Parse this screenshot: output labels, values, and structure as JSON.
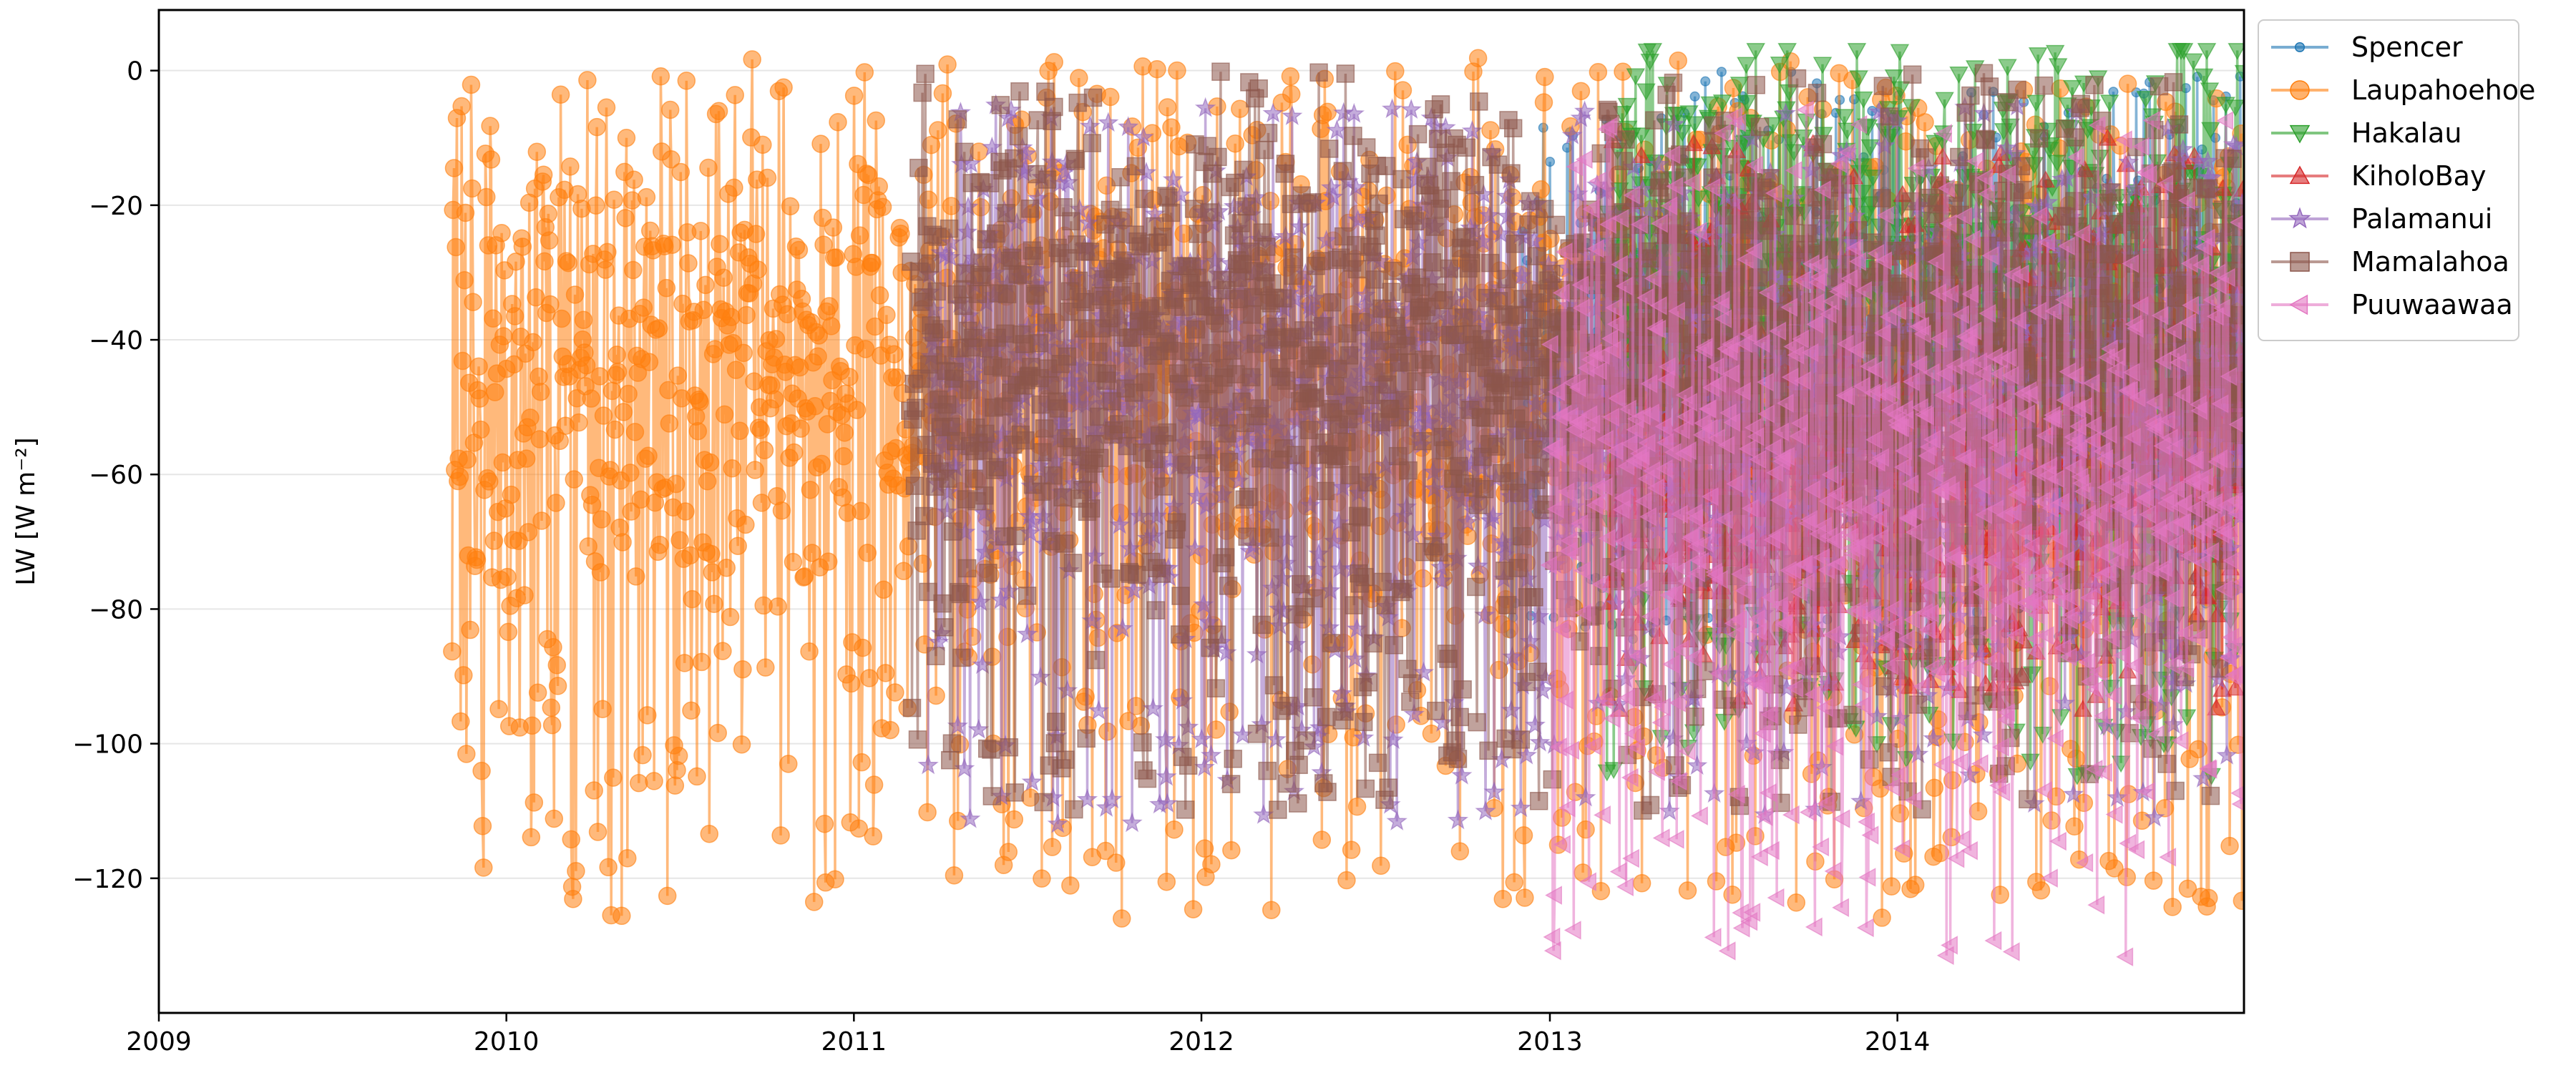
{
  "chart_data": {
    "type": "line",
    "title": "",
    "xlabel": "",
    "ylabel": "LW [W m⁻²]",
    "xlim": [
      "2009-01-01",
      "2014-12-31"
    ],
    "ylim": [
      -140,
      9
    ],
    "x_ticks": [
      "2009",
      "2010",
      "2011",
      "2012",
      "2013",
      "2014"
    ],
    "y_ticks": [
      0,
      -20,
      -40,
      -60,
      -80,
      -100,
      -120
    ],
    "grid": "horizontal",
    "legend_position": "outside-top-right",
    "markers_shown_with_lines": true,
    "series": [
      {
        "name": "Spencer",
        "color": "#1f77b4",
        "marker": "point",
        "start": "2012-11-20",
        "end": "2014-12-31",
        "typical_range": [
          -85,
          0
        ],
        "mean_approx": -40
      },
      {
        "name": "Laupahoehoe",
        "color": "#ff7f0e",
        "marker": "circle",
        "start": "2009-11-05",
        "end": "2014-12-31",
        "typical_range": [
          -126,
          2
        ],
        "mean_approx": -45
      },
      {
        "name": "Hakalau",
        "color": "#2ca02c",
        "marker": "triangle-down",
        "start": "2013-03-01",
        "end": "2014-12-31",
        "typical_range": [
          -105,
          3
        ],
        "mean_approx": -25
      },
      {
        "name": "KiholoBay",
        "color": "#d62728",
        "marker": "triangle-up",
        "start": "2013-03-01",
        "end": "2014-12-31",
        "typical_range": [
          -95,
          -10
        ],
        "mean_approx": -60
      },
      {
        "name": "Palamanui",
        "color": "#9467bd",
        "marker": "star",
        "start": "2011-03-20",
        "end": "2014-12-31",
        "typical_range": [
          -112,
          -5
        ],
        "mean_approx": -45
      },
      {
        "name": "Mamalahoa",
        "color": "#8c564b",
        "marker": "square",
        "start": "2011-03-01",
        "end": "2014-12-31",
        "typical_range": [
          -110,
          0
        ],
        "mean_approx": -38
      },
      {
        "name": "Puuwaawaa",
        "color": "#e377c2",
        "marker": "triangle-left",
        "start": "2013-01-01",
        "end": "2014-12-31",
        "typical_range": [
          -132,
          -5
        ],
        "mean_approx": -60
      }
    ]
  }
}
